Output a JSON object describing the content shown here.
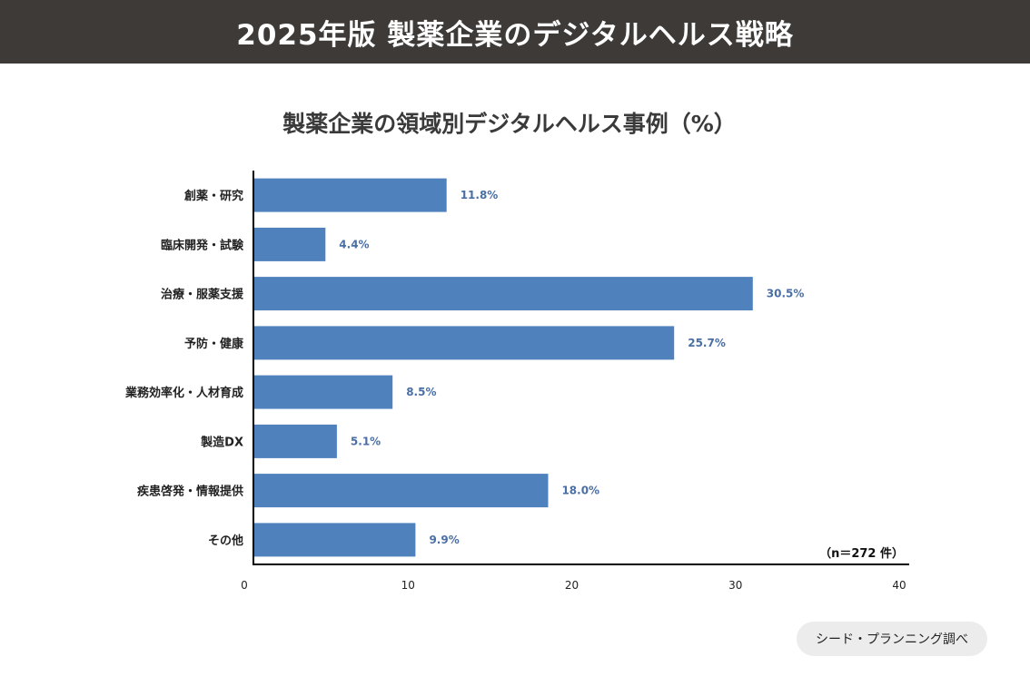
{
  "header": {
    "title": "2025年版 製薬企業のデジタルヘルス戦略"
  },
  "chart_data": {
    "type": "bar",
    "orientation": "horizontal",
    "title": "製薬企業の領域別デジタルヘルス事例（%）",
    "categories": [
      "創薬・研究",
      "臨床開発・試験",
      "治療・服薬支援",
      "予防・健康",
      "業務効率化・人材育成",
      "製造DX",
      "疾患啓発・情報提供",
      "その他"
    ],
    "values": [
      11.8,
      4.4,
      30.5,
      25.7,
      8.5,
      5.1,
      18.0,
      9.9
    ],
    "value_labels": [
      "11.8%",
      "4.4%",
      "30.5%",
      "25.7%",
      "8.5%",
      "5.1%",
      "18.0%",
      "9.9%"
    ],
    "xlim": [
      0,
      40
    ],
    "xticks": [
      0,
      10,
      20,
      30,
      40
    ],
    "annotation": "（n＝272 件）",
    "bar_color": "#4f81bd"
  },
  "source": "シード・プランニング調べ"
}
